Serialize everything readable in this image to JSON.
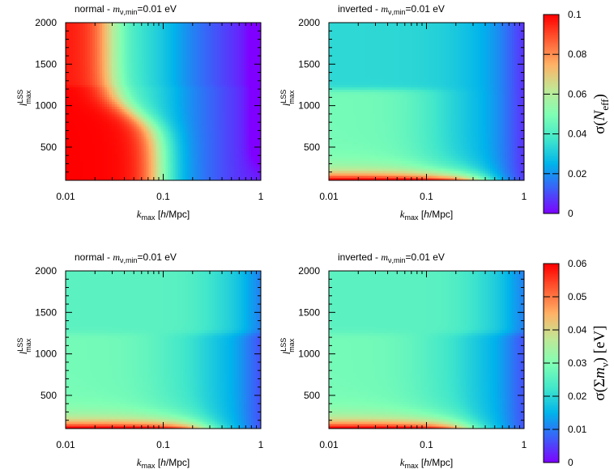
{
  "chart_data": [
    {
      "type": "heatmap",
      "title": "normal - m_ν,min=0.01 eV",
      "title_parts": {
        "pre": "normal - ",
        "m": "m",
        "sub": "ν,min",
        "post": "=0.01 eV"
      },
      "xlabel": "k_max [h/Mpc]",
      "ylabel": "l_max^LSS",
      "x_scale": "log",
      "xlim": [
        0.01,
        1
      ],
      "x_ticks": [
        "0.01",
        "0.1",
        "1"
      ],
      "ylim": [
        100,
        2000
      ],
      "y_ticks": [
        "500",
        "1000",
        "1500",
        "2000"
      ],
      "colorbar": "sigma_neff",
      "model": "normal_neff"
    },
    {
      "type": "heatmap",
      "title": "inverted - m_ν,min=0.01 eV",
      "title_parts": {
        "pre": "inverted - ",
        "m": "m",
        "sub": "ν,min",
        "post": "=0.01 eV"
      },
      "xlabel": "k_max [h/Mpc]",
      "ylabel": "l_max^LSS",
      "x_scale": "log",
      "xlim": [
        0.01,
        1
      ],
      "x_ticks": [
        "0.01",
        "0.1",
        "1"
      ],
      "ylim": [
        100,
        2000
      ],
      "y_ticks": [
        "500",
        "1000",
        "1500",
        "2000"
      ],
      "colorbar": "sigma_neff",
      "model": "inverted_neff"
    },
    {
      "type": "heatmap",
      "title": "normal - m_ν,min=0.01 eV",
      "title_parts": {
        "pre": "normal - ",
        "m": "m",
        "sub": "ν,min",
        "post": "=0.01 eV"
      },
      "xlabel": "k_max [h/Mpc]",
      "ylabel": "l_max^LSS",
      "x_scale": "log",
      "xlim": [
        0.01,
        1
      ],
      "x_ticks": [
        "0.01",
        "0.1",
        "1"
      ],
      "ylim": [
        100,
        2000
      ],
      "y_ticks": [
        "500",
        "1000",
        "1500",
        "2000"
      ],
      "colorbar": "sigma_summnu",
      "model": "mnu"
    },
    {
      "type": "heatmap",
      "title": "inverted - m_ν,min=0.01 eV",
      "title_parts": {
        "pre": "inverted - ",
        "m": "m",
        "sub": "ν,min",
        "post": "=0.01 eV"
      },
      "xlabel": "k_max [h/Mpc]",
      "ylabel": "l_max^LSS",
      "x_scale": "log",
      "xlim": [
        0.01,
        1
      ],
      "x_ticks": [
        "0.01",
        "0.1",
        "1"
      ],
      "ylim": [
        100,
        2000
      ],
      "y_ticks": [
        "500",
        "1000",
        "1500",
        "2000"
      ],
      "colorbar": "sigma_summnu",
      "model": "mnu"
    }
  ],
  "colorbars": {
    "sigma_neff": {
      "label": "σ(N_eff)",
      "range": [
        0,
        0.1
      ],
      "ticks": [
        "0",
        "0.02",
        "0.04",
        "0.06",
        "0.08",
        "0.1"
      ]
    },
    "sigma_summnu": {
      "label": "σ(Σm_ν) [eV]",
      "range": [
        0,
        0.06
      ],
      "ticks": [
        "0",
        "0.01",
        "0.02",
        "0.03",
        "0.04",
        "0.05",
        "0.06"
      ]
    }
  },
  "colormap": [
    "#7f00ff",
    "#3d5df9",
    "#00b3eb",
    "#40e6cb",
    "#80ffb4",
    "#c0e896",
    "#ffb266",
    "#ff5c33",
    "#ff0000"
  ],
  "axis_text": {
    "xlabel_k": "k",
    "xlabel_sub": "max",
    "xlabel_rest": " [",
    "xlabel_h": "h",
    "xlabel_end": "/Mpc]",
    "ylabel_l": "l",
    "ylabel_sup": "LSS",
    "ylabel_sub": "max"
  }
}
